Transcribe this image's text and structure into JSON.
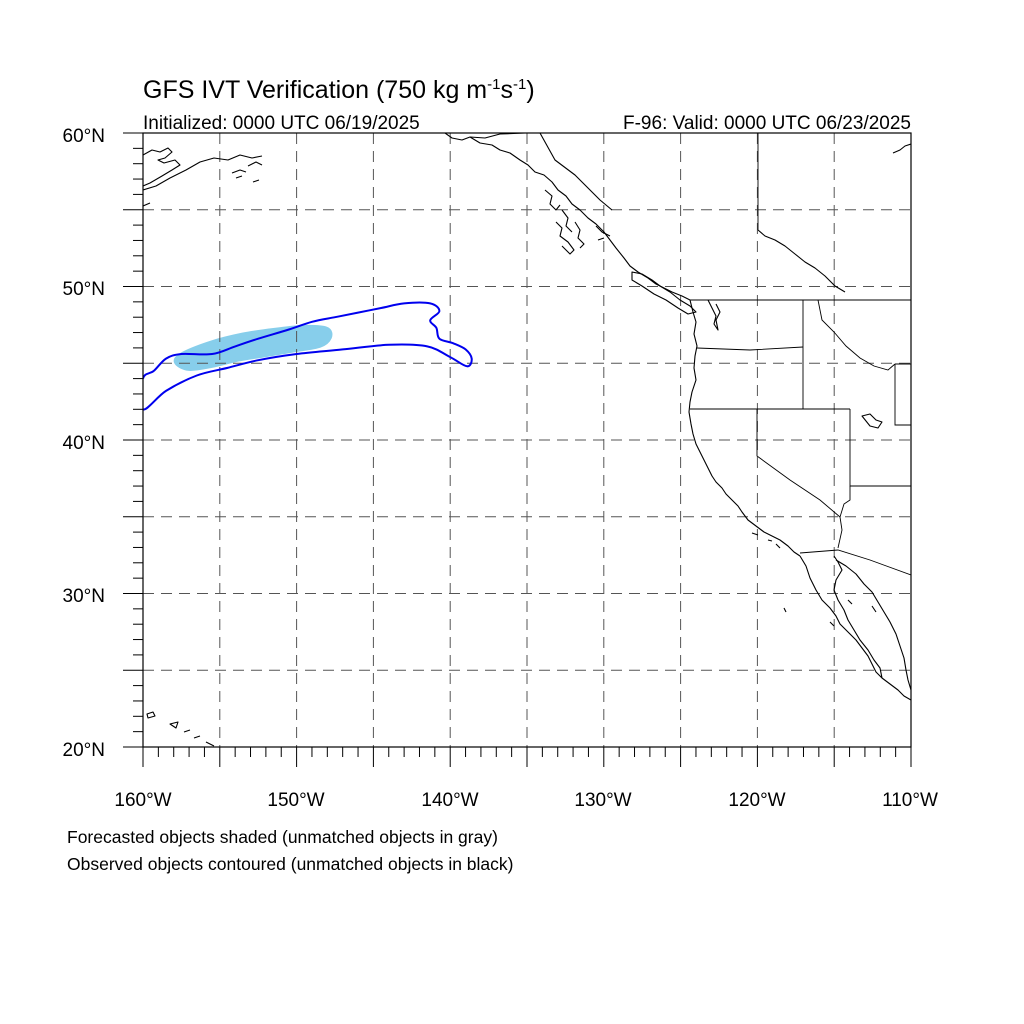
{
  "title": {
    "main": "GFS IVT Verification (750 kg m",
    "unit_sup1": "-1",
    "unit_mid": "s",
    "unit_sup2": "-1",
    "unit_close": ")"
  },
  "initialized": "Initialized: 0000 UTC 06/19/2025",
  "valid": "F-96: Valid: 0000 UTC 06/23/2025",
  "lat_labels": [
    "60°N",
    "50°N",
    "40°N",
    "30°N",
    "20°N"
  ],
  "lon_labels": [
    "160°W",
    "150°W",
    "140°W",
    "130°W",
    "120°W",
    "110°W"
  ],
  "notes": [
    "Forecasted objects shaded (unmatched objects in gray)",
    "Observed objects contoured (unmatched objects in black)"
  ],
  "map": {
    "projection": "cylindrical equidistant",
    "lon_range": [
      -160,
      -110
    ],
    "lat_range": [
      20,
      60
    ],
    "grid_spacing_deg": 5,
    "grid_style": "dashed",
    "colors": {
      "forecast_shading": "#87CEEB",
      "observed_contour": "#0000EE",
      "coastline": "#000000",
      "grid": "#555555"
    },
    "forecast_object_lonlat": [
      [
        -157.3,
        45.6
      ],
      [
        -155.5,
        46.3
      ],
      [
        -153.5,
        46.8
      ],
      [
        -151.5,
        47.1
      ],
      [
        -149.5,
        47.3
      ],
      [
        -148.1,
        47.2
      ],
      [
        -147.9,
        46.7
      ],
      [
        -148.5,
        46.2
      ],
      [
        -150.2,
        45.9
      ],
      [
        -152.0,
        45.6
      ],
      [
        -153.8,
        45.3
      ],
      [
        -155.5,
        44.9
      ],
      [
        -157.0,
        44.7
      ],
      [
        -157.8,
        45.1
      ]
    ],
    "observed_object_lonlat": [
      [
        -160,
        44.0
      ],
      [
        -159.3,
        44.5
      ],
      [
        -158.5,
        45.3
      ],
      [
        -157.5,
        45.6
      ],
      [
        -155.5,
        45.6
      ],
      [
        -154.0,
        46.1
      ],
      [
        -152.5,
        46.6
      ],
      [
        -150.5,
        47.2
      ],
      [
        -149.0,
        47.7
      ],
      [
        -147.5,
        48.0
      ],
      [
        -146.0,
        48.3
      ],
      [
        -144.5,
        48.6
      ],
      [
        -143.0,
        48.9
      ],
      [
        -141.3,
        48.9
      ],
      [
        -140.7,
        48.4
      ],
      [
        -141.3,
        47.8
      ],
      [
        -140.9,
        47.3
      ],
      [
        -140.7,
        46.6
      ],
      [
        -139.8,
        46.3
      ],
      [
        -139.0,
        45.9
      ],
      [
        -138.6,
        45.3
      ],
      [
        -138.9,
        44.8
      ],
      [
        -140.0,
        45.4
      ],
      [
        -141.5,
        46.1
      ],
      [
        -144.0,
        46.2
      ],
      [
        -147.0,
        45.9
      ],
      [
        -150.0,
        45.6
      ],
      [
        -152.5,
        45.2
      ],
      [
        -154.5,
        44.7
      ],
      [
        -156.5,
        44.2
      ],
      [
        -158.5,
        43.2
      ],
      [
        -160,
        42.0
      ]
    ]
  }
}
